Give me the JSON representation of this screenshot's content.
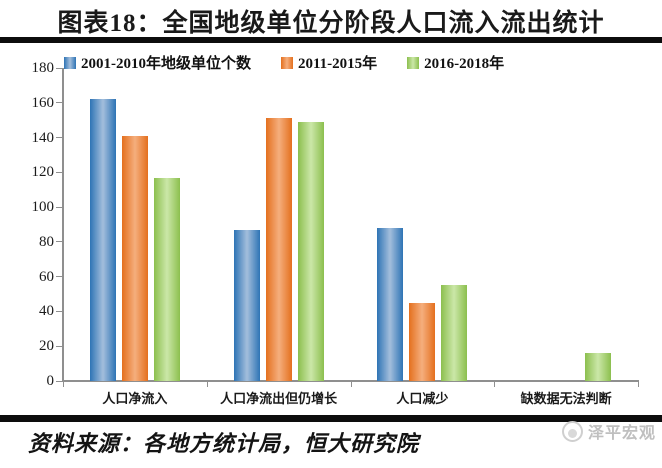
{
  "header": {
    "title": "图表18：全国地级单位分阶段人口流入流出统计"
  },
  "chart_data": {
    "type": "bar",
    "title": "全国地级单位分阶段人口流入流出统计",
    "categories": [
      "人口净流入",
      "人口净流出但仍增长",
      "人口减少",
      "缺数据无法判断"
    ],
    "series": [
      {
        "name": "2001-2010年地级单位个数",
        "color": "#2E74B5",
        "color_light": "#A3BEDC",
        "values": [
          162,
          87,
          88,
          0
        ]
      },
      {
        "name": "2011-2015年",
        "color": "#E4701E",
        "color_light": "#F5AE7D",
        "values": [
          141,
          151,
          45,
          0
        ]
      },
      {
        "name": "2016-2018年",
        "color": "#8CBF4E",
        "color_light": "#CBE7A8",
        "values": [
          117,
          149,
          55,
          16
        ]
      }
    ],
    "ylim": [
      0,
      180
    ],
    "ytick_step": 20,
    "yticks": [
      0,
      20,
      40,
      60,
      80,
      100,
      120,
      140,
      160,
      180
    ],
    "legend_position": "top",
    "grid": false,
    "axis_color": "#8f8f8f"
  },
  "footer": {
    "source": "资料来源：各地方统计局，恒大研究院",
    "logo_text": "泽平宏观"
  }
}
